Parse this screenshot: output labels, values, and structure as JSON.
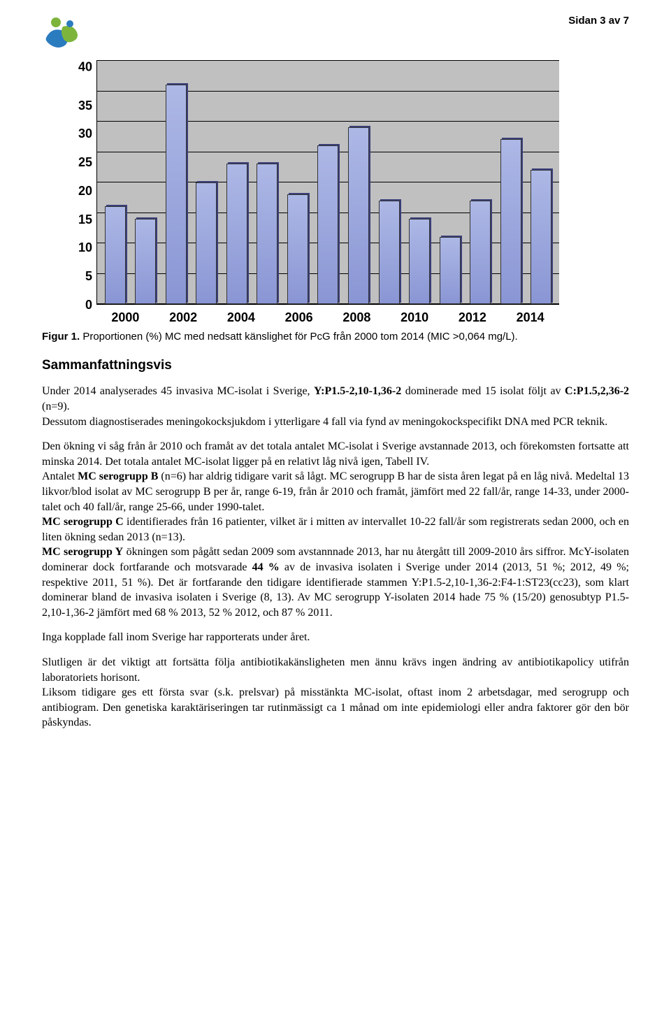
{
  "page_label": "Sidan 3 av 7",
  "chart": {
    "type": "bar",
    "ylim": [
      0,
      40
    ],
    "ytick_step": 5,
    "yticks": [
      "40",
      "35",
      "30",
      "25",
      "20",
      "15",
      "10",
      "5",
      "0"
    ],
    "xticks": [
      "2000",
      "2002",
      "2004",
      "2006",
      "2008",
      "2010",
      "2012",
      "2014"
    ],
    "values": [
      16,
      14,
      36,
      20,
      23,
      23,
      18,
      26,
      29,
      17,
      14,
      11,
      17,
      27,
      22
    ],
    "bar_color": "#9aa4dc",
    "bar_edge": "#333333",
    "grid_color": "#000000",
    "plot_bg": "#c0c0c0",
    "font_family": "Arial",
    "tick_fontsize": 18,
    "tick_fontweight": "bold"
  },
  "caption_lead": "Figur 1.",
  "caption_rest": " Proportionen (%) MC med nedsatt känslighet för PcG från 2000 tom 2014 (MIC >0,064 mg/L).",
  "section_title": "Sammanfattningsvis",
  "para1_a": "Under 2014 analyserades 45 invasiva MC-isolat i Sverige, ",
  "para1_b_bold": "Y:P1.5-2,10-1,36-2",
  "para1_c": " dominerade med 15 isolat följt av ",
  "para1_d_bold": "C:P1.5,2,36-2",
  "para1_e": " (n=9).",
  "para1_f": "Dessutom diagnostiserades meningokocksjukdom i ytterligare 4 fall via fynd av meningokockspecifikt DNA med PCR teknik.",
  "para2_a": "Den ökning vi såg från år 2010 och framåt av det totala antalet MC-isolat i Sverige avstannade 2013, och förekomsten fortsatte att minska 2014. Det totala antalet MC-isolat ligger på en relativt låg nivå igen, Tabell IV.",
  "para2_b": "Antalet ",
  "para2_c_bold": "MC serogrupp B",
  "para2_d": " (n=6) har aldrig tidigare varit så lågt. MC serogrupp B har de sista åren legat på en låg nivå. Medeltal 13 likvor/blod isolat av MC serogrupp B per år, range 6-19, från år 2010 och framåt, jämfört med 22 fall/år, range 14-33, under 2000-talet och 40 fall/år, range 25-66, under 1990-talet.",
  "para2_e_bold": "MC serogrupp C",
  "para2_f": " identifierades från 16 patienter, vilket är i mitten av intervallet 10-22 fall/år som registrerats sedan 2000, och en liten ökning sedan 2013 (n=13).",
  "para2_g_bold": "MC serogrupp Y",
  "para2_h": " ökningen som pågått sedan 2009 som avstannnade 2013, har nu återgått till 2009-2010 års siffror. McY-isolaten dominerar dock fortfarande och motsvarade ",
  "para2_i_bold": "44 %",
  "para2_j": " av de invasiva isolaten i Sverige under 2014 (2013, 51 %; 2012, 49 %; respektive 2011, 51 %). Det är fortfarande den tidigare identifierade stammen Y:P1.5-2,10-1,36-2:F4-1:ST23(cc23), som klart dominerar bland de invasiva isolaten i Sverige (8, 13). Av MC serogrupp Y-isolaten 2014 hade 75 % (15/20) genosubtyp P1.5-2,10-1,36-2 jämfört med 68 % 2013, 52 % 2012, och 87 % 2011.",
  "para3": "Inga kopplade fall inom Sverige har rapporterats under året.",
  "para4": "Slutligen är det viktigt att fortsätta följa antibiotikakänsligheten men ännu krävs ingen ändring av antibiotikapolicy utifrån laboratoriets horisont.",
  "para5": "Liksom tidigare ges ett första svar (s.k. prelsvar) på misstänkta MC-isolat, oftast inom 2 arbetsdagar, med serogrupp och antibiogram. Den genetiska karaktäriseringen tar rutinmässigt ca 1 månad om inte epidemiologi eller andra faktorer gör den bör påskyndas."
}
